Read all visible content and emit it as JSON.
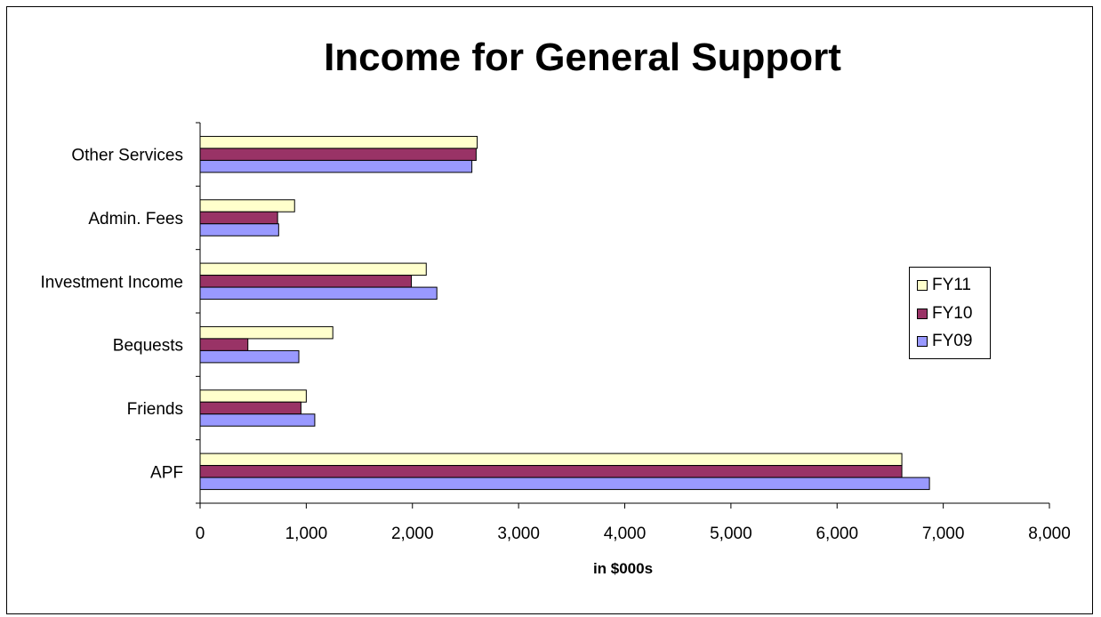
{
  "chart_data": {
    "type": "bar",
    "orientation": "horizontal",
    "title": "Income for General Support",
    "xlabel": "in $000s",
    "ylabel": "",
    "xlim": [
      0,
      8000
    ],
    "x_ticks": [
      "0",
      "1,000",
      "2,000",
      "3,000",
      "4,000",
      "5,000",
      "6,000",
      "7,000",
      "8,000"
    ],
    "categories": [
      "APF",
      "Friends",
      "Bequests",
      "Investment Income",
      "Admin. Fees",
      "Other Services"
    ],
    "series": [
      {
        "name": "FY11",
        "color": "#FFFFCC",
        "values": [
          6610,
          1000,
          1250,
          2130,
          890,
          2610
        ]
      },
      {
        "name": "FY10",
        "color": "#993366",
        "values": [
          6610,
          950,
          450,
          1990,
          730,
          2600
        ]
      },
      {
        "name": "FY09",
        "color": "#9999FF",
        "values": [
          6870,
          1080,
          930,
          2230,
          740,
          2560
        ]
      }
    ],
    "legend": {
      "position": "right",
      "entries": [
        "FY11",
        "FY10",
        "FY09"
      ]
    },
    "grid": false
  }
}
